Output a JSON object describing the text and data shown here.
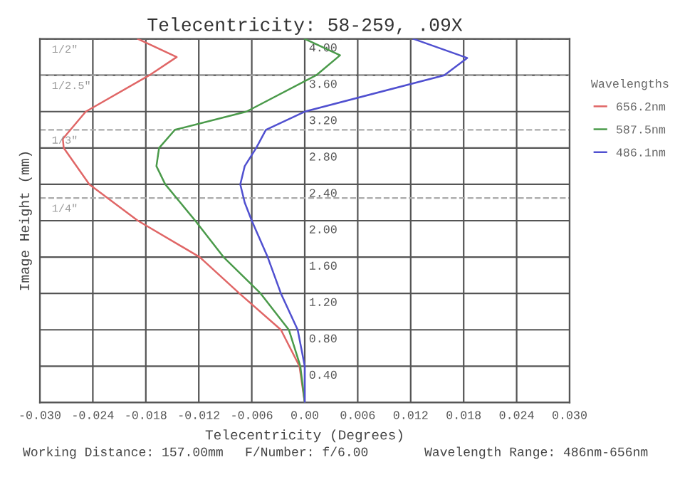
{
  "chart_data": {
    "type": "line",
    "title": "Telecentricity: 58-259, .09X",
    "xlabel": "Telecentricity (Degrees)",
    "ylabel": "Image Height (mm)",
    "legend_title": "Wavelengths",
    "series": [
      {
        "name": "656.2nm",
        "color": "#e06666",
        "x": [
          0,
          -0.0006,
          -0.0027,
          -0.0074,
          -0.0119,
          -0.0189,
          -0.0244,
          -0.0273,
          -0.0274,
          -0.0248,
          -0.0176,
          -0.0145,
          -0.0189
        ],
        "values": [
          0,
          0.4,
          0.8,
          1.2,
          1.6,
          2.0,
          2.4,
          2.8,
          2.9,
          3.2,
          3.6,
          3.8,
          4.0
        ]
      },
      {
        "name": "587.5nm",
        "color": "#4a9a4a",
        "x": [
          0,
          -0.0005,
          -0.0018,
          -0.005,
          -0.0092,
          -0.0124,
          -0.0158,
          -0.0168,
          -0.0165,
          -0.0147,
          -0.0066,
          0.0013,
          0.004,
          0
        ],
        "values": [
          0,
          0.4,
          0.8,
          1.2,
          1.6,
          2.0,
          2.4,
          2.6,
          2.8,
          3.0,
          3.2,
          3.6,
          3.82,
          4.0
        ]
      },
      {
        "name": "486.1nm",
        "color": "#5050d0",
        "x": [
          0,
          0,
          -0.0008,
          -0.0027,
          -0.0042,
          -0.006,
          -0.0068,
          -0.0073,
          -0.0068,
          -0.0055,
          -0.0044,
          0,
          0.0158,
          0.0184,
          0.0123
        ],
        "values": [
          0,
          0.4,
          0.8,
          1.2,
          1.6,
          2.0,
          2.2,
          2.4,
          2.6,
          2.8,
          3.0,
          3.2,
          3.6,
          3.79,
          4.0
        ]
      }
    ],
    "xlim": [
      -0.03,
      0.03
    ],
    "ylim": [
      0,
      4.0
    ],
    "xticks": [
      {
        "value": -0.03,
        "label": "-0.030"
      },
      {
        "value": -0.024,
        "label": "-0.024"
      },
      {
        "value": -0.018,
        "label": "-0.018"
      },
      {
        "value": -0.012,
        "label": "-0.012"
      },
      {
        "value": -0.006,
        "label": "-0.006"
      },
      {
        "value": 0,
        "label": "0.00"
      },
      {
        "value": 0.006,
        "label": "0.006"
      },
      {
        "value": 0.012,
        "label": "0.012"
      },
      {
        "value": 0.018,
        "label": "0.018"
      },
      {
        "value": 0.024,
        "label": "0.024"
      },
      {
        "value": 0.03,
        "label": "0.030"
      }
    ],
    "yticks": [
      {
        "value": 0,
        "label": null
      },
      {
        "value": 0.4,
        "label": "0.40"
      },
      {
        "value": 0.8,
        "label": "0.80"
      },
      {
        "value": 1.2,
        "label": "1.20"
      },
      {
        "value": 1.6,
        "label": "1.60"
      },
      {
        "value": 2.0,
        "label": "2.00"
      },
      {
        "value": 2.4,
        "label": "2.40"
      },
      {
        "value": 2.8,
        "label": "2.80"
      },
      {
        "value": 3.2,
        "label": "3.20"
      },
      {
        "value": 3.6,
        "label": "3.60"
      },
      {
        "value": 4.0,
        "label": "4.00"
      }
    ],
    "ref_lines": [
      {
        "axis": "y",
        "value": 4.0,
        "color": "#aaaaaa",
        "line_style": "dashed"
      },
      {
        "axis": "y",
        "value": 3.6,
        "color": "#aaaaaa",
        "line_style": "dashed"
      },
      {
        "axis": "y",
        "value": 3.0,
        "color": "#aaaaaa",
        "line_style": "dashed"
      },
      {
        "axis": "y",
        "value": 2.25,
        "color": "#aaaaaa",
        "line_style": "dashed"
      }
    ],
    "annotations": [
      {
        "text": "1/2\"",
        "y": 4.0
      },
      {
        "text": "1/2.5\"",
        "y": 3.6
      },
      {
        "text": "1/3\"",
        "y": 3.0
      },
      {
        "text": "1/4\"",
        "y": 2.25
      },
      "Working Distance: 157.00mm",
      "F/Number: f/6.00",
      "Wavelength Range: 486nm-656nm"
    ],
    "grid": true,
    "legend": "right",
    "marker": "none",
    "line_style": "solid"
  }
}
